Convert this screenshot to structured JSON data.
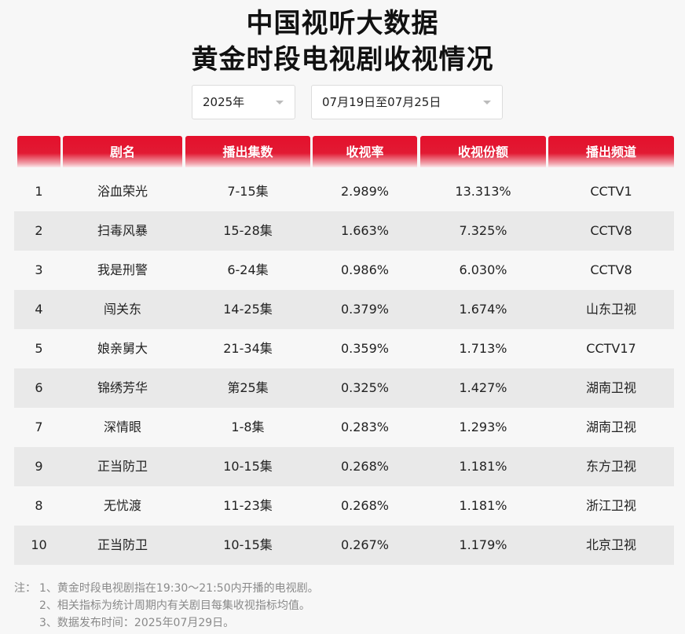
{
  "title_line1": "中国视听大数据",
  "title_line2": "黄金时段电视剧收视情况",
  "filters": {
    "year": "2025年",
    "date_range": "07月19日至07月25日"
  },
  "table": {
    "headers": [
      "",
      "剧名",
      "播出集数",
      "收视率",
      "收视份额",
      "播出频道"
    ],
    "rows": [
      {
        "rank": "1",
        "name": "浴血荣光",
        "episodes": "7-15集",
        "rating": "2.989%",
        "share": "13.313%",
        "channel": "CCTV1"
      },
      {
        "rank": "2",
        "name": "扫毒风暴",
        "episodes": "15-28集",
        "rating": "1.663%",
        "share": "7.325%",
        "channel": "CCTV8"
      },
      {
        "rank": "3",
        "name": "我是刑警",
        "episodes": "6-24集",
        "rating": "0.986%",
        "share": "6.030%",
        "channel": "CCTV8"
      },
      {
        "rank": "4",
        "name": "闯关东",
        "episodes": "14-25集",
        "rating": "0.379%",
        "share": "1.674%",
        "channel": "山东卫视"
      },
      {
        "rank": "5",
        "name": "娘亲舅大",
        "episodes": "21-34集",
        "rating": "0.359%",
        "share": "1.713%",
        "channel": "CCTV17"
      },
      {
        "rank": "6",
        "name": "锦绣芳华",
        "episodes": "第25集",
        "rating": "0.325%",
        "share": "1.427%",
        "channel": "湖南卫视"
      },
      {
        "rank": "7",
        "name": "深情眼",
        "episodes": "1-8集",
        "rating": "0.283%",
        "share": "1.293%",
        "channel": "湖南卫视"
      },
      {
        "rank": "9",
        "name": "正当防卫",
        "episodes": "10-15集",
        "rating": "0.268%",
        "share": "1.181%",
        "channel": "东方卫视"
      },
      {
        "rank": "8",
        "name": "无忧渡",
        "episodes": "11-23集",
        "rating": "0.268%",
        "share": "1.181%",
        "channel": "浙江卫视"
      },
      {
        "rank": "10",
        "name": "正当防卫",
        "episodes": "10-15集",
        "rating": "0.267%",
        "share": "1.179%",
        "channel": "北京卫视"
      }
    ]
  },
  "notes": {
    "prefix": "注：",
    "line1": "1、黄金时段电视剧指在19:30～21:50内开播的电视剧。",
    "line2": "2、相关指标为统计周期内有关剧目每集收视指标均值。",
    "line3": "3、数据发布时间：2025年07月29日。"
  },
  "colors": {
    "header_red": "#e4102c",
    "row_alt": "#e9e9e9",
    "page_bg": "#f7f7f7"
  }
}
